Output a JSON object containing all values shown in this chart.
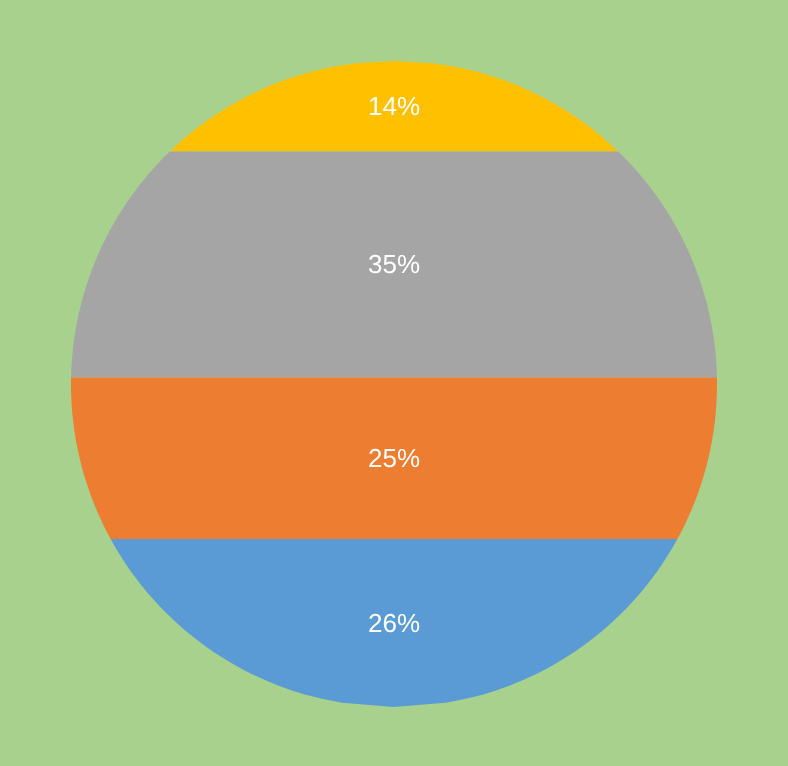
{
  "chart_data": {
    "type": "other",
    "categories": [
      null,
      null,
      null,
      null
    ],
    "values": [
      14,
      35,
      25,
      26
    ],
    "colors": [
      "#ffc000",
      "#a5a5a5",
      "#ed7d31",
      "#5b9bd5"
    ],
    "value_labels": [
      "14%",
      "35%",
      "25%",
      "26%"
    ]
  }
}
